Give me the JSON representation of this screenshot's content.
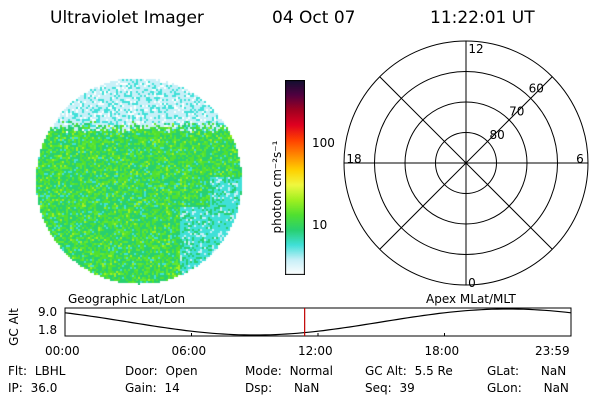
{
  "header": {
    "title": "Ultraviolet Imager",
    "date": "04 Oct 07",
    "time": "11:22:01 UT"
  },
  "colorbar": {
    "label": "photon cm⁻²s⁻¹",
    "ticks": [
      {
        "label": "100",
        "value": 100
      },
      {
        "label": "10",
        "value": 10
      }
    ],
    "range": [
      2.5,
      600
    ],
    "scale": "log",
    "colors": [
      "#ffffff",
      "#c8f0f8",
      "#40e0d8",
      "#28d070",
      "#50e030",
      "#a0f020",
      "#f0f840",
      "#ffd000",
      "#ff8800",
      "#ff4000",
      "#e00020",
      "#a00020",
      "#500040",
      "#101030"
    ]
  },
  "polar": {
    "clock_labels": [
      {
        "label": "12",
        "angle_deg": 0
      },
      {
        "label": "6",
        "angle_deg": 90
      },
      {
        "label": "0",
        "angle_deg": 180
      },
      {
        "label": "18",
        "angle_deg": 270
      }
    ],
    "lat_labels": [
      {
        "label": "60",
        "lat": 60
      },
      {
        "label": "70",
        "lat": 70
      },
      {
        "label": "80",
        "lat": 80
      }
    ]
  },
  "earth_image": {
    "colors": [
      "#28d070",
      "#40e0d8",
      "#50e030",
      "#60e830",
      "#c8f0f8",
      "#a0f020"
    ]
  },
  "bottom_panel": {
    "left_title": "Geographic Lat/Lon",
    "right_title": "Apex MLat/MLT",
    "y_label": "GC Alt",
    "y_ticks": [
      "9.0",
      "1.8"
    ],
    "y_range": [
      1.8,
      9.0
    ],
    "x_ticks": [
      "00:00",
      "06:00",
      "12:00",
      "18:00",
      "23:59"
    ],
    "current_time": "11:22",
    "current_time_hours": 11.367,
    "marker_color": "#c00000"
  },
  "info": {
    "flt_label": "Flt:",
    "flt_value": "LBHL",
    "ip_label": "IP:",
    "ip_value": "36.0",
    "door_label": "Door:",
    "door_value": "Open",
    "gain_label": "Gain:",
    "gain_value": "14",
    "mode_label": "Mode:",
    "mode_value": "Normal",
    "dsp_label": "Dsp:",
    "dsp_value": "NaN",
    "gcalt_label": "GC Alt:",
    "gcalt_value": "5.5 Re",
    "seq_label": "Seq:",
    "seq_value": "39",
    "glat_label": "GLat:",
    "glat_value": "NaN",
    "glon_label": "GLon:",
    "glon_value": "NaN"
  }
}
